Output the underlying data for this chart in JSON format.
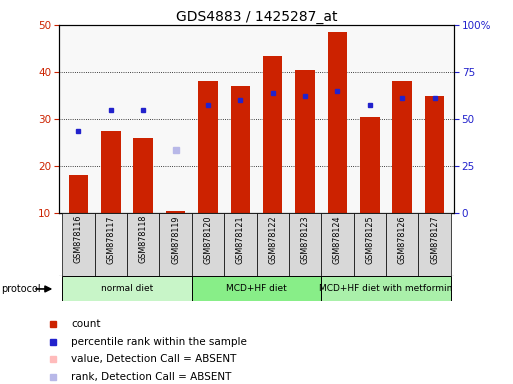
{
  "title": "GDS4883 / 1425287_at",
  "samples": [
    "GSM878116",
    "GSM878117",
    "GSM878118",
    "GSM878119",
    "GSM878120",
    "GSM878121",
    "GSM878122",
    "GSM878123",
    "GSM878124",
    "GSM878125",
    "GSM878126",
    "GSM878127"
  ],
  "bar_values": [
    18,
    27.5,
    26,
    10.5,
    38,
    37,
    43.5,
    40.5,
    48.5,
    30.5,
    38,
    35
  ],
  "blue_dots": [
    27.5,
    32,
    32,
    null,
    33,
    34,
    35.5,
    35,
    36,
    33,
    34.5,
    34.5
  ],
  "absent_rank": [
    null,
    null,
    null,
    23.5,
    null,
    null,
    null,
    null,
    null,
    null,
    null,
    null
  ],
  "groups": [
    {
      "label": "normal diet",
      "start": 0,
      "end": 3,
      "color": "#c8f5c8"
    },
    {
      "label": "MCD+HF diet",
      "start": 4,
      "end": 7,
      "color": "#88ee88"
    },
    {
      "label": "MCD+HF diet with metformin",
      "start": 8,
      "end": 11,
      "color": "#aaf0aa"
    }
  ],
  "ylim_left": [
    10,
    50
  ],
  "ylim_right": [
    0,
    100
  ],
  "yticks_left": [
    10,
    20,
    30,
    40,
    50
  ],
  "yticks_right": [
    0,
    25,
    50,
    75,
    100
  ],
  "yticklabels_right": [
    "0",
    "25",
    "50",
    "75",
    "100%"
  ],
  "bar_color": "#cc2200",
  "blue_dot_color": "#2222cc",
  "absent_color": "#b8b8e8",
  "grid_color": "#000000",
  "bg_color": "#ffffff",
  "tick_label_color_left": "#cc2200",
  "tick_label_color_right": "#2222cc",
  "legend": [
    {
      "label": "count",
      "color": "#cc2200"
    },
    {
      "label": "percentile rank within the sample",
      "color": "#2222cc"
    },
    {
      "label": "value, Detection Call = ABSENT",
      "color": "#ffbbbb"
    },
    {
      "label": "rank, Detection Call = ABSENT",
      "color": "#b8b8e8"
    }
  ],
  "label_box_color": "#d8d8d8"
}
